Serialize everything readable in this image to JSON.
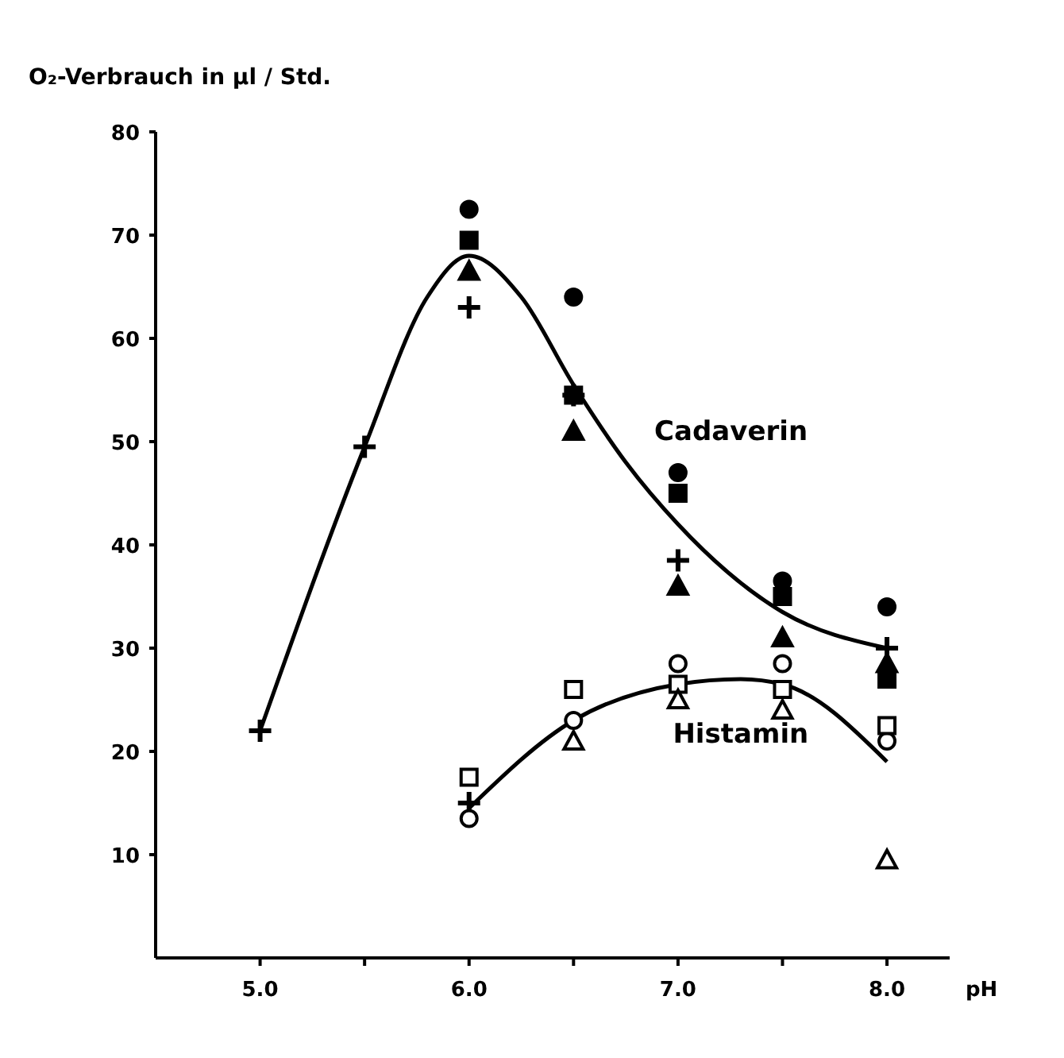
{
  "chart_data": {
    "type": "scatter",
    "ylabel": "O₂-Verbrauch in µl / Std.",
    "xlabel": "pH",
    "xlim": [
      4.5,
      8.3
    ],
    "ylim": [
      0,
      80
    ],
    "xticks": [
      {
        "value": 5,
        "label": "5.0"
      },
      {
        "value": 5.5,
        "label": null
      },
      {
        "value": 6,
        "label": "6.0"
      },
      {
        "value": 6.5,
        "label": null
      },
      {
        "value": 7,
        "label": "7.0"
      },
      {
        "value": 7.5,
        "label": null
      },
      {
        "value": 8,
        "label": "8.0"
      }
    ],
    "yticks": [
      10,
      20,
      30,
      40,
      50,
      60,
      70,
      80
    ],
    "grid": false,
    "series": [
      {
        "type": "line",
        "name": "Cadaverin",
        "color": "#000000",
        "marker": "none",
        "line_style": "solid",
        "x": [
          5.0,
          5.5,
          5.8,
          6.0,
          6.25,
          6.5,
          6.75,
          7.0,
          7.5,
          8.0
        ],
        "values": [
          22,
          49.5,
          64,
          68,
          64,
          55.5,
          48,
          42,
          33.5,
          30
        ]
      },
      {
        "type": "line",
        "name": "Histamin",
        "color": "#000000",
        "marker": "none",
        "line_style": "solid",
        "x": [
          6.0,
          6.5,
          7.0,
          7.3,
          7.5,
          8.0
        ],
        "values": [
          14.5,
          23,
          26.5,
          27,
          26.5,
          19
        ]
      },
      {
        "color": "#000000",
        "marker": "circle",
        "x": [
          6.0,
          6.5,
          7.0,
          7.5,
          8.0
        ],
        "values": [
          72.5,
          64,
          47,
          36.5,
          34
        ]
      },
      {
        "color": "#000000",
        "marker": "square",
        "x": [
          6.0,
          6.5,
          7.0,
          7.5,
          8.0
        ],
        "values": [
          69.5,
          54.5,
          45,
          35,
          27
        ]
      },
      {
        "color": "#000000",
        "marker": "triangle",
        "x": [
          6.0,
          6.5,
          7.0,
          7.5,
          8.0
        ],
        "values": [
          66.5,
          51,
          36,
          31,
          28.5
        ]
      },
      {
        "color": "#000000",
        "marker": "cross",
        "x": [
          5.0,
          5.5,
          6.0,
          6.5,
          7.0,
          8.0,
          6.0
        ],
        "values": [
          22,
          49.5,
          63,
          54.5,
          38.5,
          30,
          15
        ]
      },
      {
        "color": "#ffffff",
        "marker": "circle",
        "x": [
          6.0,
          6.5,
          7.0,
          7.5,
          8.0
        ],
        "values": [
          13.5,
          23,
          28.5,
          28.5,
          21
        ]
      },
      {
        "color": "#ffffff",
        "marker": "square",
        "x": [
          6.0,
          6.5,
          7.0,
          7.5,
          8.0
        ],
        "values": [
          17.5,
          26,
          26.5,
          26,
          22.5
        ]
      },
      {
        "color": "#ffffff",
        "marker": "triangle",
        "x": [
          6.5,
          7.0,
          7.5,
          8.0
        ],
        "values": [
          21,
          25,
          24,
          9.5
        ]
      }
    ]
  }
}
